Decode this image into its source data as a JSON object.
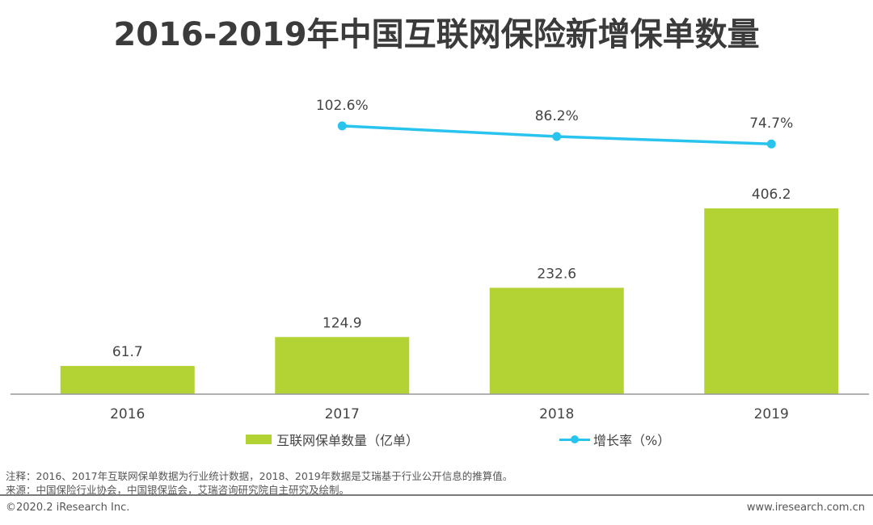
{
  "chart_data": {
    "type": "bar",
    "title": "2016-2019年中国互联网保险新增保单数量",
    "categories": [
      "2016",
      "2017",
      "2018",
      "2019"
    ],
    "series": [
      {
        "name": "互联网保单数量（亿单）",
        "type": "bar",
        "values": [
          61.7,
          124.9,
          232.6,
          406.2
        ],
        "labels": [
          "61.7",
          "124.9",
          "232.6",
          "406.2"
        ],
        "color": "#b3d335"
      },
      {
        "name": "增长率（%）",
        "type": "line",
        "values": [
          null,
          102.6,
          86.2,
          74.7
        ],
        "labels": [
          "",
          "102.6%",
          "86.2%",
          "74.7%"
        ],
        "color": "#29c4ee"
      }
    ],
    "xlabel": "",
    "ylabel": "",
    "ylim": [
      0,
      406.2
    ],
    "grid": false,
    "legend": "bottom"
  },
  "notes": {
    "note": "注释：2016、2017年互联网保单数据为行业统计数据，2018、2019年数据是艾瑞基于行业公开信息的推算值。",
    "source": "来源：中国保险行业协会，中国银保监会，艾瑞咨询研究院自主研究及绘制。"
  },
  "footer": {
    "copyright": "©2020.2  iResearch Inc.",
    "website": "www.iresearch.com.cn"
  }
}
